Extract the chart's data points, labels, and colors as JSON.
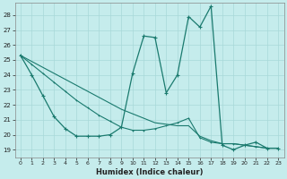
{
  "xlabel": "Humidex (Indice chaleur)",
  "bg_color": "#c5ecec",
  "grid_color": "#a8d8d8",
  "line_color": "#1a7a6e",
  "xlim": [
    -0.5,
    23.5
  ],
  "ylim": [
    18.5,
    28.8
  ],
  "yticks": [
    19,
    20,
    21,
    22,
    23,
    24,
    25,
    26,
    27,
    28
  ],
  "xtick_labels": [
    "0",
    "1",
    "2",
    "3",
    "4",
    "5",
    "6",
    "7",
    "8",
    "9",
    "10",
    "11",
    "12",
    "13",
    "14",
    "15",
    "16",
    "17",
    "18",
    "19",
    "20",
    "21",
    "22",
    "23"
  ],
  "xtick_pos": [
    0,
    1,
    2,
    3,
    4,
    5,
    6,
    7,
    8,
    9,
    10,
    11,
    12,
    13,
    14,
    15,
    16,
    17,
    18,
    19,
    20,
    21,
    22,
    23
  ],
  "series1_x": [
    0,
    1,
    2,
    3,
    4,
    5,
    6,
    7,
    8,
    9,
    10,
    11,
    12,
    13,
    14,
    15,
    16,
    17,
    18,
    19,
    20,
    21,
    22,
    23
  ],
  "series1_y": [
    25.3,
    24.0,
    22.6,
    21.2,
    20.4,
    19.9,
    19.9,
    19.9,
    20.0,
    20.5,
    24.1,
    26.6,
    26.5,
    22.8,
    24.0,
    27.9,
    27.2,
    28.6,
    19.3,
    19.0,
    19.3,
    19.5,
    19.1,
    19.1
  ],
  "series2_x": [
    0,
    1,
    2,
    3,
    4,
    5,
    6,
    7,
    8,
    9,
    10,
    11,
    12,
    13,
    14,
    15,
    16,
    17,
    18,
    19,
    20,
    21,
    22,
    23
  ],
  "series2_y": [
    25.3,
    24.7,
    24.1,
    23.5,
    22.9,
    22.3,
    21.8,
    21.3,
    20.9,
    20.5,
    20.3,
    20.3,
    20.4,
    20.6,
    20.8,
    21.1,
    19.8,
    19.5,
    19.4,
    19.4,
    19.3,
    19.2,
    19.1,
    19.1
  ],
  "series3_x": [
    0,
    1,
    2,
    3,
    4,
    5,
    6,
    7,
    8,
    9,
    10,
    11,
    12,
    13,
    14,
    15,
    16,
    17,
    18,
    19,
    20,
    21,
    22,
    23
  ],
  "series3_y": [
    25.3,
    24.9,
    24.5,
    24.1,
    23.7,
    23.3,
    22.9,
    22.5,
    22.1,
    21.7,
    21.4,
    21.1,
    20.8,
    20.7,
    20.6,
    20.6,
    19.9,
    19.6,
    19.4,
    19.4,
    19.3,
    19.2,
    19.1,
    19.1
  ]
}
